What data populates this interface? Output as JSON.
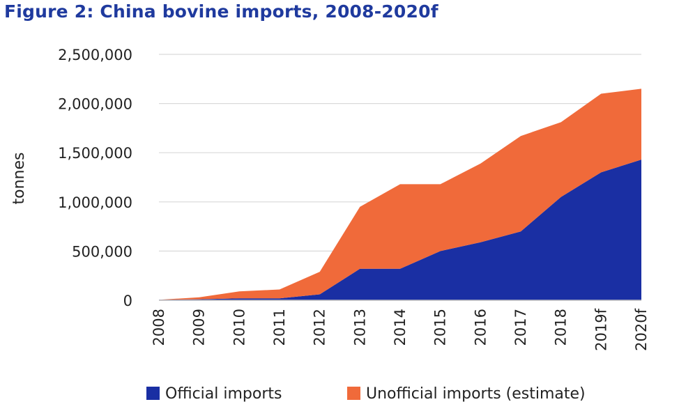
{
  "chart_data": {
    "type": "area",
    "stacked": true,
    "title": "Figure 2: China bovine imports, 2008-2020f",
    "ylabel": "tonnes",
    "xlabel": "",
    "categories": [
      "2008",
      "2009",
      "2010",
      "2011",
      "2012",
      "2013",
      "2014",
      "2015",
      "2016",
      "2017",
      "2018",
      "2019f",
      "2020f"
    ],
    "yticks": [
      "0",
      "500,000",
      "1,000,000",
      "1,500,000",
      "2,000,000",
      "2,500,000"
    ],
    "ylim": [
      0,
      2500000
    ],
    "grid": true,
    "legend_position": "bottom",
    "series": [
      {
        "name": "Official imports",
        "color": "#1a2fa3",
        "values": [
          5000,
          10000,
          20000,
          20000,
          60000,
          320000,
          320000,
          500000,
          590000,
          700000,
          1050000,
          1300000,
          1430000
        ]
      },
      {
        "name": "Unofficial imports (estimate)",
        "color": "#f06a3a",
        "values": [
          0,
          20000,
          70000,
          90000,
          230000,
          630000,
          860000,
          680000,
          800000,
          970000,
          760000,
          800000,
          720000
        ]
      }
    ]
  }
}
